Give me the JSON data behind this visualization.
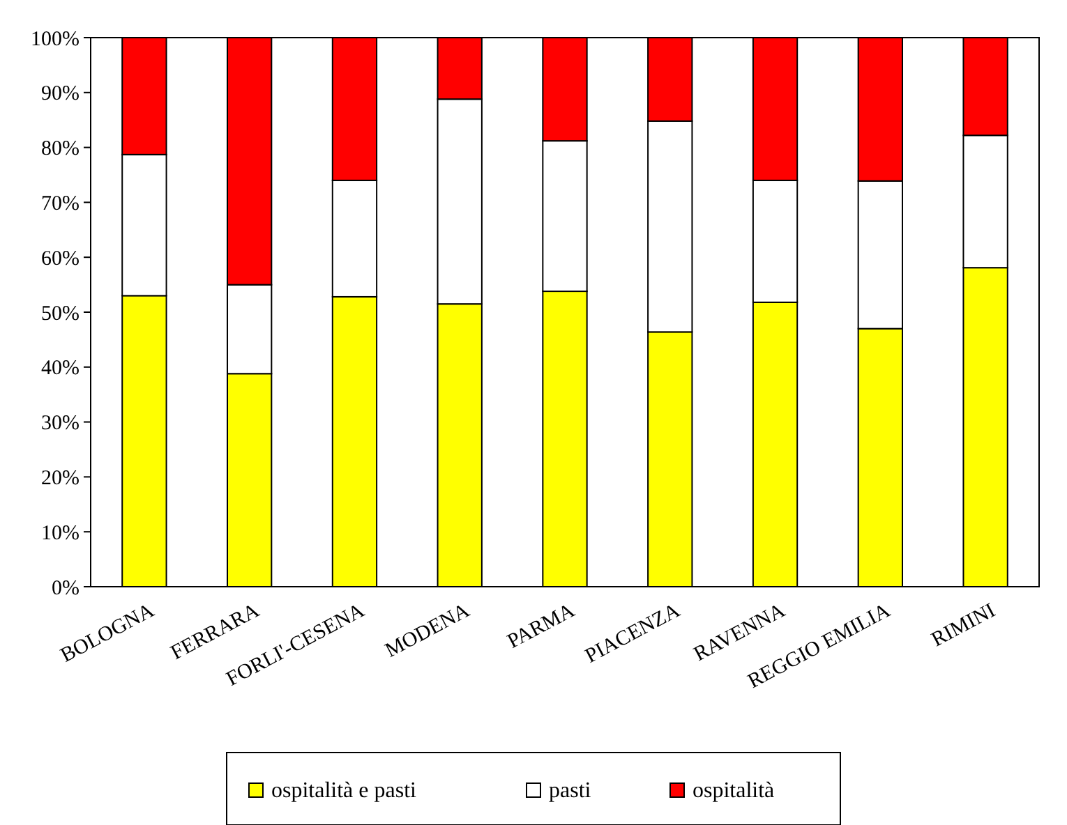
{
  "chart_data": {
    "type": "bar",
    "stacked": true,
    "categories": [
      "BOLOGNA",
      "FERRARA",
      "FORLI'-CESENA",
      "MODENA",
      "PARMA",
      "PIACENZA",
      "RAVENNA",
      "REGGIO EMILIA",
      "RIMINI"
    ],
    "series": [
      {
        "name": "ospitalità e pasti",
        "color": "#ffff00",
        "values": [
          53,
          38.8,
          52.8,
          51.5,
          53.8,
          46.4,
          51.8,
          47,
          58.1
        ]
      },
      {
        "name": "pasti",
        "color": "#ffffff",
        "values": [
          25.7,
          16.2,
          21.2,
          37.3,
          27.4,
          38.4,
          22.2,
          26.9,
          24.1
        ]
      },
      {
        "name": "ospitalità",
        "color": "#ff0000",
        "values": [
          21.3,
          45,
          26,
          11.2,
          18.8,
          15.2,
          26,
          26.1,
          17.8
        ]
      }
    ],
    "ylim": [
      0,
      100
    ],
    "yticks": [
      {
        "value": 0,
        "label": "0%"
      },
      {
        "value": 10,
        "label": "10%"
      },
      {
        "value": 20,
        "label": "20%"
      },
      {
        "value": 30,
        "label": "30%"
      },
      {
        "value": 40,
        "label": "40%"
      },
      {
        "value": 50,
        "label": "50%"
      },
      {
        "value": 60,
        "label": "60%"
      },
      {
        "value": 70,
        "label": "70%"
      },
      {
        "value": 80,
        "label": "80%"
      },
      {
        "value": 90,
        "label": "90%"
      },
      {
        "value": 100,
        "label": "100%"
      }
    ],
    "legend": "bottom"
  }
}
